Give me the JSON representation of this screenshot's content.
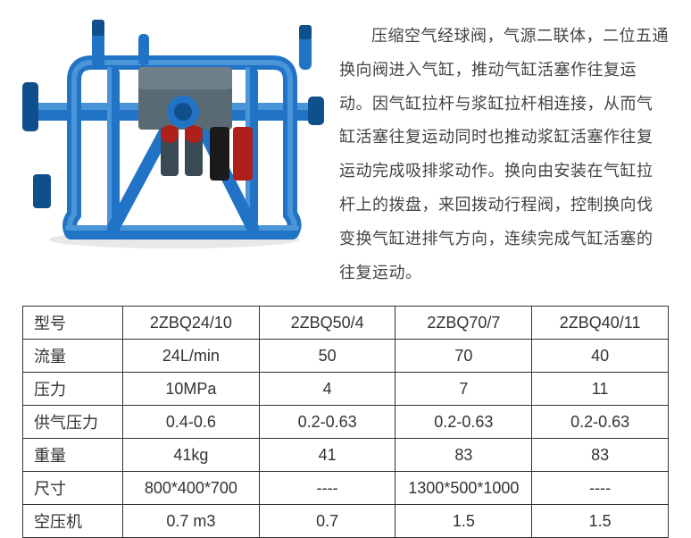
{
  "description_text": "压缩空气经球阀，气源二联体，二位五通换向阀进入气缸，推动气缸活塞作往复运动。因气缸拉杆与浆缸拉杆相连接，从而气缸活塞往复运动同时也推动浆缸活塞作往复运动完成吸排浆动作。换向由安装在气缸拉杆上的拨盘，来回拨动行程阀，控制换向伐变换气缸进排气方向，连续完成气缸活塞的往复运动。",
  "image_colors": {
    "frame": "#2173c6",
    "frame_dark": "#0f4f8c",
    "valve_red": "#b0201a",
    "valve_black": "#1a1a1a",
    "body_gray": "#5a6a75",
    "shadow": "#e8e8e8"
  },
  "table": {
    "headers": [
      "型号",
      "2ZBQ24/10",
      "2ZBQ50/4",
      "2ZBQ70/7",
      "2ZBQ40/11"
    ],
    "rows": [
      {
        "label": "流量",
        "cells": [
          "24L/min",
          "50",
          "70",
          "40"
        ]
      },
      {
        "label": "压力",
        "cells": [
          "10MPa",
          "4",
          "7",
          "11"
        ]
      },
      {
        "label": "供气压力",
        "cells": [
          "0.4-0.6",
          "0.2-0.63",
          "0.2-0.63",
          "0.2-0.63"
        ]
      },
      {
        "label": "重量",
        "cells": [
          "41kg",
          "41",
          "83",
          "83"
        ]
      },
      {
        "label": "尺寸",
        "cells": [
          "800*400*700",
          "----",
          "1300*500*1000",
          "----"
        ]
      },
      {
        "label": "空压机",
        "cells": [
          "0.7 m3",
          "0.7",
          "1.5",
          "1.5"
        ]
      }
    ]
  }
}
